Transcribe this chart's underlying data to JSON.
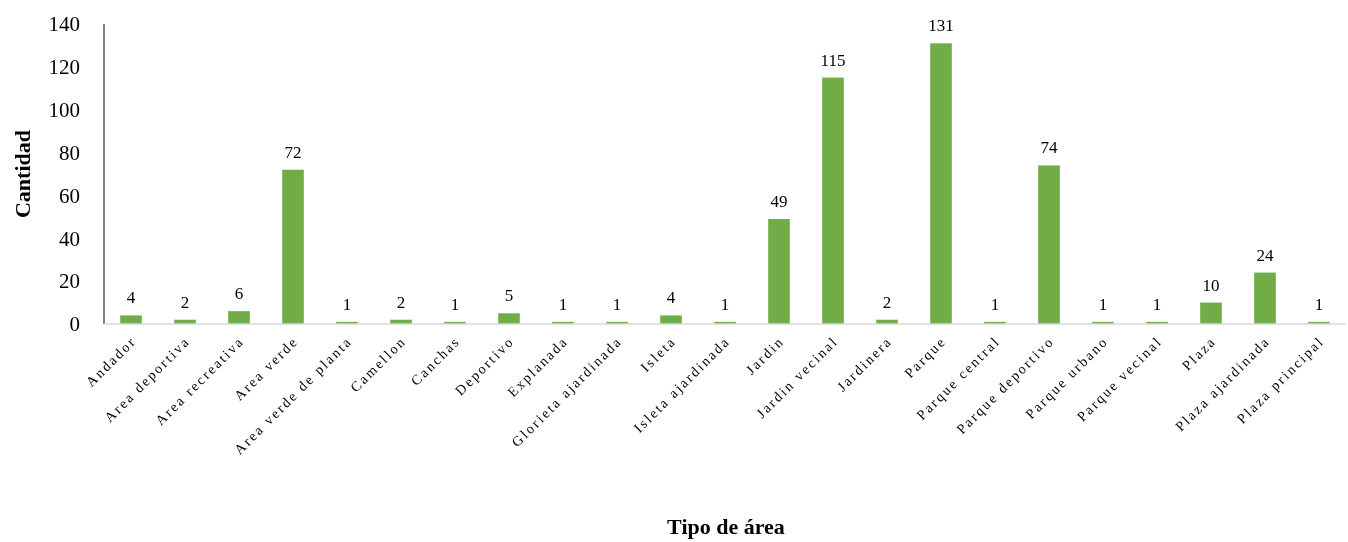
{
  "chart_data": {
    "type": "bar",
    "xlabel": "Tipo de área",
    "ylabel": "Cantidad",
    "categories": [
      "Andador",
      "Area deportiva",
      "Area recreativa",
      "Area verde",
      "Area verde de planta",
      "Camellon",
      "Canchas",
      "Deportivo",
      "Explanada",
      "Glorieta ajardinada",
      "Isleta",
      "Isleta ajardinada",
      "Jardin",
      "Jardin vecinal",
      "Jardinera",
      "Parque",
      "Parque central",
      "Parque deportivo",
      "Parque urbano",
      "Parque vecinal",
      "Plaza",
      "Plaza ajardinada",
      "Plaza principal"
    ],
    "values": [
      4,
      2,
      6,
      72,
      1,
      2,
      1,
      5,
      1,
      1,
      4,
      1,
      49,
      115,
      2,
      131,
      1,
      74,
      1,
      1,
      10,
      24,
      1
    ],
    "color": "#70ad47",
    "ylim": [
      0,
      140
    ],
    "yticks": [
      0,
      20,
      40,
      60,
      80,
      100,
      120,
      140
    ],
    "data_labels": true,
    "grid": false
  }
}
